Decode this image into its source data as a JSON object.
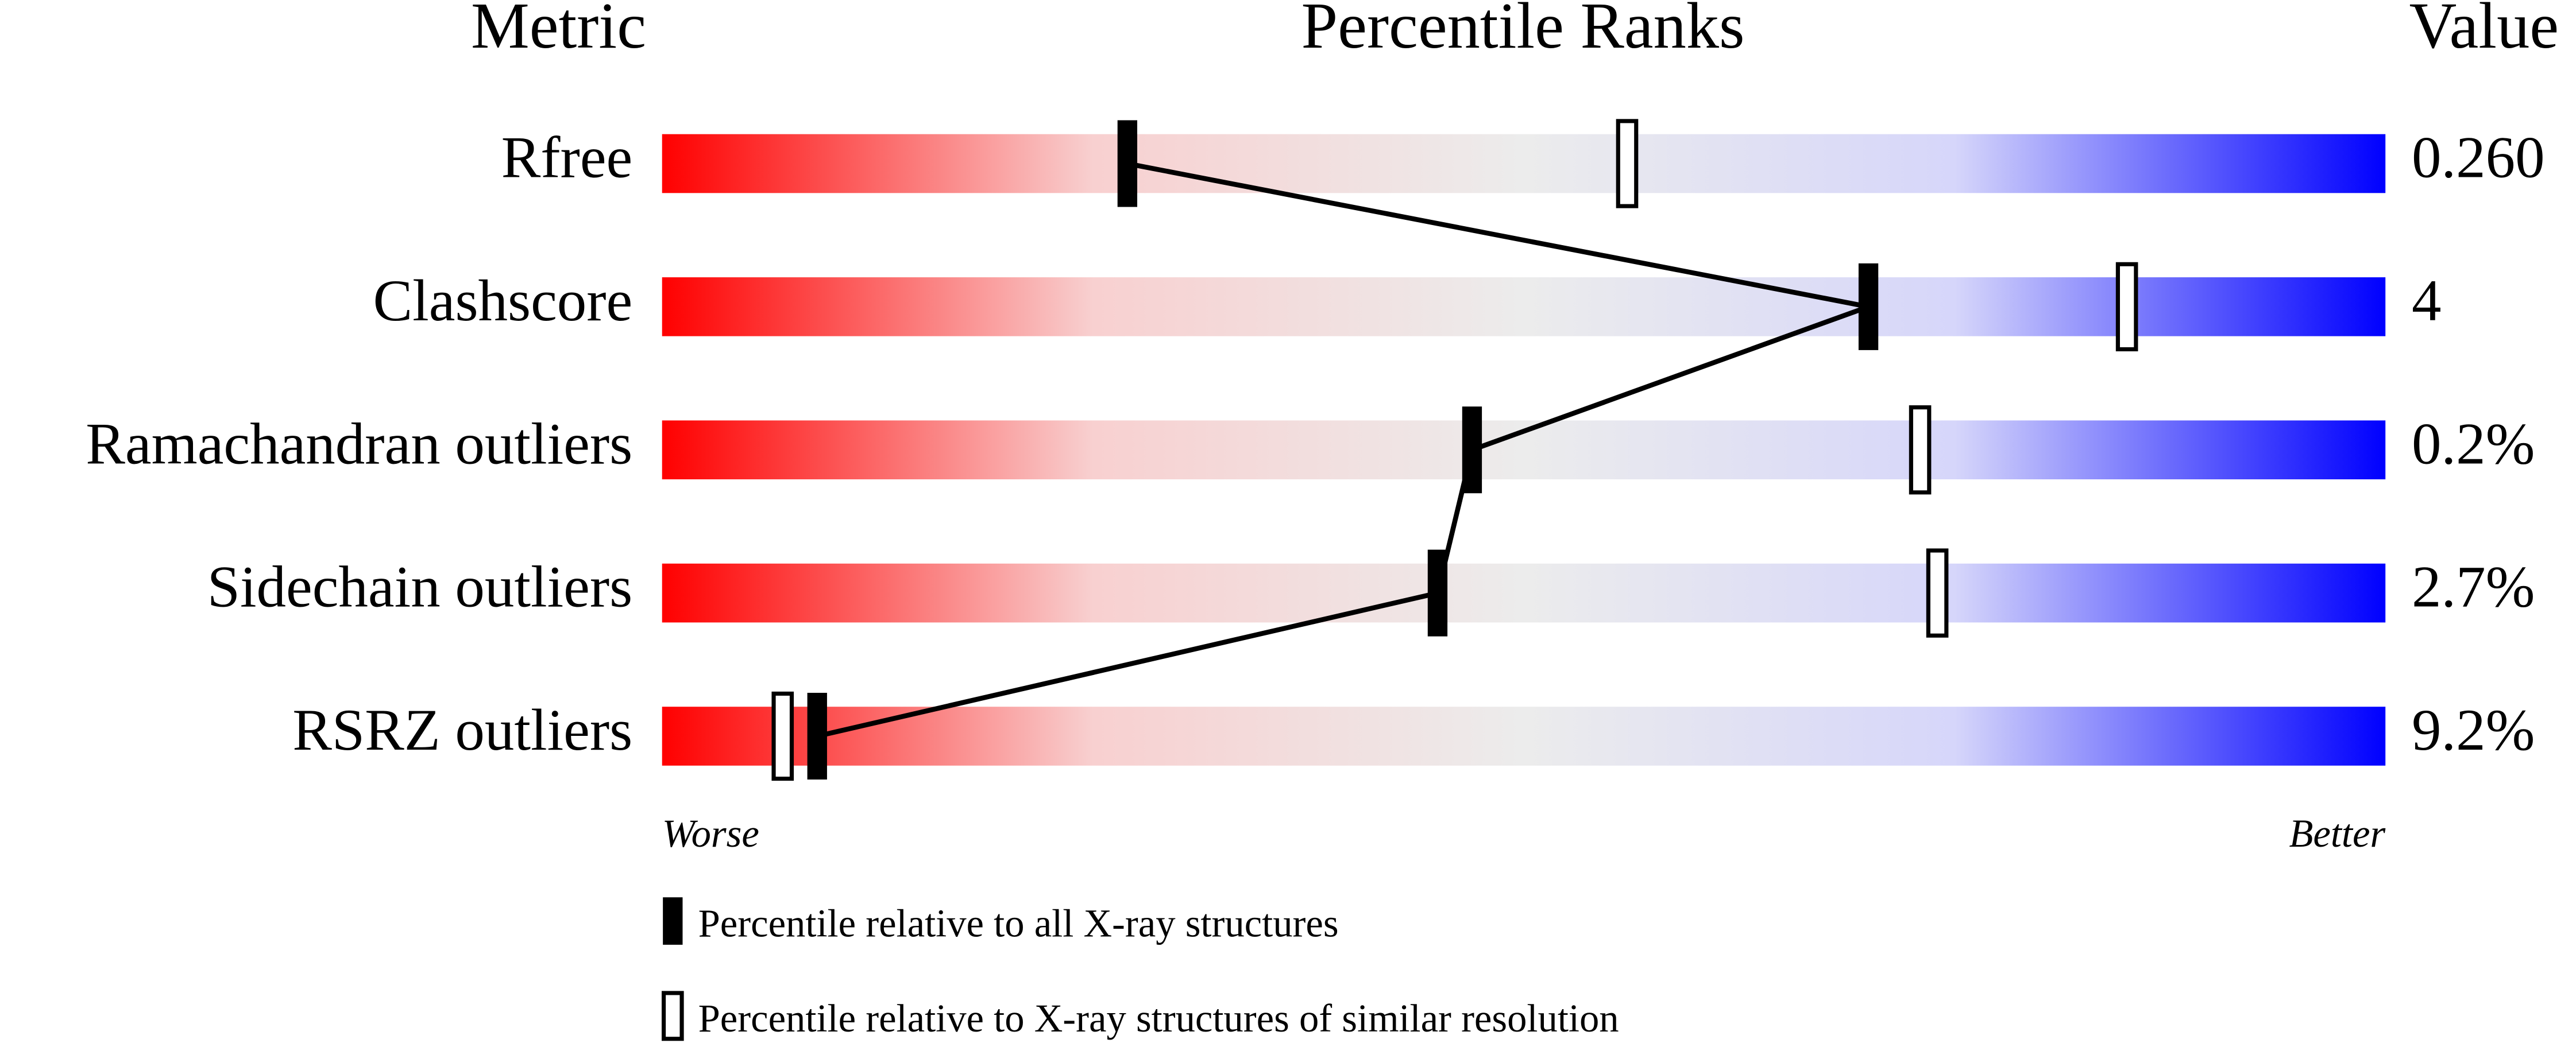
{
  "chart_data": {
    "type": "percentile",
    "headers": {
      "metric": "Metric",
      "ranks": "Percentile Ranks",
      "value": "Value"
    },
    "metrics": [
      "Rfree",
      "Clashscore",
      "Ramachandran outliers",
      "Sidechain outliers",
      "RSRZ outliers"
    ],
    "metric_values": [
      "0.260",
      "4",
      "0.2%",
      "2.7%",
      "9.2%"
    ],
    "series": [
      {
        "name": "Percentile relative to all X-ray structures",
        "color": "#000000",
        "filled": true,
        "connected": true,
        "values": [
          27,
          70,
          47,
          45,
          9
        ]
      },
      {
        "name": "Percentile relative to X-ray structures of similar resolution",
        "color": "#000000",
        "filled": false,
        "connected": false,
        "values": [
          56,
          85,
          73,
          74,
          7
        ]
      }
    ],
    "xlim": [
      0,
      100
    ],
    "axis_labels": {
      "low": "Worse",
      "high": "Better"
    },
    "gradient": [
      "#ff0000",
      "#f8d0d0",
      "#ececec",
      "#d6d6fa",
      "#0000ff"
    ]
  }
}
